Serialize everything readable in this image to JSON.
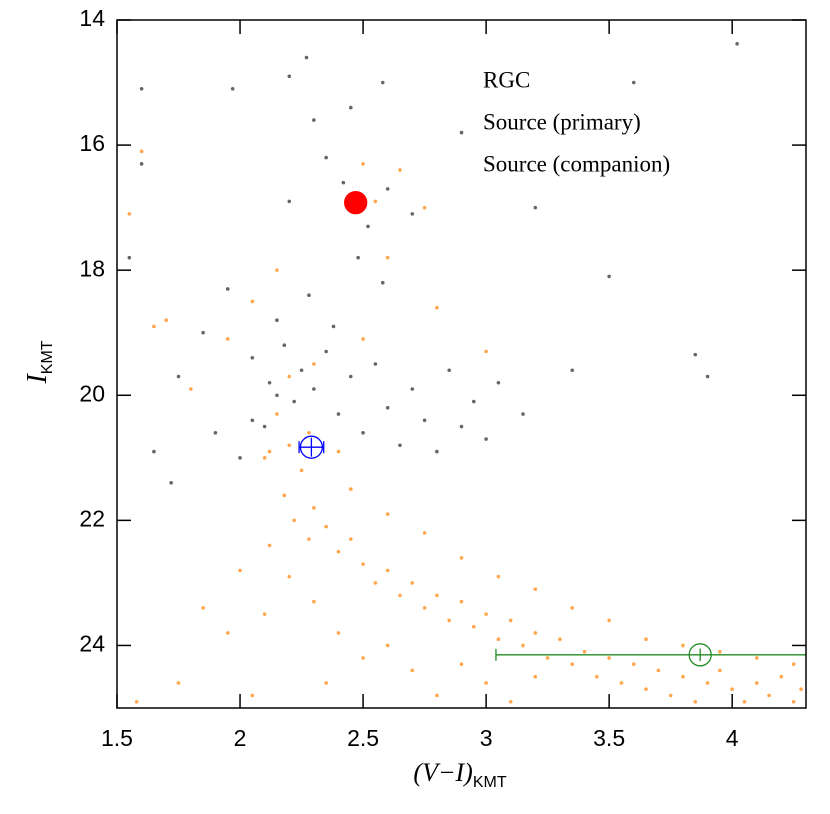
{
  "chart_data": {
    "type": "scatter",
    "xlabel": "(V−I)",
    "xlabel_sub": "KMT",
    "ylabel": "I",
    "ylabel_sub": "KMT",
    "xlim": [
      1.5,
      4.3
    ],
    "ylim": [
      25,
      14
    ],
    "xticks": [
      1.5,
      2,
      2.5,
      3,
      3.5,
      4
    ],
    "yticks": [
      14,
      16,
      18,
      20,
      22,
      24
    ],
    "background": [
      {
        "color": "#666666",
        "x": [
          2.05,
          2.12,
          2.18,
          2.22,
          2.25,
          2.3,
          2.35,
          2.4,
          2.45,
          2.5,
          2.55,
          2.6,
          2.65,
          2.7,
          2.75,
          2.8,
          2.85,
          2.9,
          2.95,
          3.05,
          3.15,
          2.15,
          2.28,
          2.38,
          2.48,
          2.52,
          2.58,
          2.42,
          2.35,
          2.6,
          2.7,
          2.2,
          1.95,
          1.85,
          1.75,
          1.65,
          1.6,
          1.55,
          1.9,
          2.0,
          2.1,
          2.3,
          2.45,
          2.58,
          2.9,
          3.2,
          3.6,
          4.02,
          3.9,
          3.85,
          3.5,
          3.35,
          3.0,
          1.6,
          1.97,
          2.2,
          2.27,
          1.72,
          2.05,
          2.15
        ],
        "y": [
          19.4,
          19.8,
          19.2,
          20.1,
          19.6,
          19.9,
          19.3,
          20.3,
          19.7,
          20.6,
          19.5,
          20.2,
          20.8,
          19.9,
          20.4,
          20.9,
          19.6,
          20.5,
          20.1,
          19.8,
          20.3,
          18.8,
          18.4,
          18.9,
          17.8,
          17.3,
          18.2,
          16.6,
          16.2,
          16.7,
          17.1,
          16.9,
          18.3,
          19.0,
          19.7,
          20.9,
          16.3,
          17.8,
          20.6,
          21.0,
          20.5,
          15.6,
          15.4,
          15.0,
          15.8,
          17.0,
          15.0,
          14.38,
          19.7,
          19.35,
          18.1,
          19.6,
          20.7,
          15.1,
          15.1,
          14.9,
          14.6,
          21.4,
          20.4,
          20.0
        ]
      },
      {
        "color": "#ffa64d",
        "x": [
          2.15,
          2.2,
          2.25,
          2.18,
          2.22,
          2.3,
          2.28,
          2.35,
          2.4,
          2.45,
          2.5,
          2.55,
          2.6,
          2.65,
          2.7,
          2.75,
          2.8,
          2.85,
          2.9,
          2.95,
          3.0,
          3.05,
          3.1,
          3.15,
          3.2,
          3.25,
          3.3,
          3.35,
          3.4,
          3.45,
          3.5,
          3.55,
          3.6,
          3.65,
          3.7,
          3.75,
          3.8,
          3.85,
          3.9,
          3.95,
          4.0,
          4.05,
          4.1,
          4.15,
          4.2,
          4.25,
          4.28,
          2.1,
          2.12,
          2.2,
          2.3,
          2.4,
          2.5,
          2.35,
          2.6,
          2.7,
          2.8,
          2.9,
          3.0,
          3.1,
          3.2,
          2.45,
          2.6,
          2.75,
          2.9,
          3.05,
          3.2,
          3.35,
          3.5,
          3.65,
          3.8,
          3.95,
          4.1,
          4.25,
          2.05,
          1.95,
          1.85,
          2.0,
          2.1,
          1.6,
          1.55,
          1.7,
          1.8,
          1.95,
          2.05,
          2.15,
          2.3,
          2.5,
          2.6,
          2.55,
          2.65,
          2.75,
          2.5,
          2.8,
          3.0,
          2.2,
          2.28,
          2.12,
          2.4,
          1.65,
          1.58,
          1.75
        ],
        "y": [
          20.3,
          20.8,
          21.2,
          21.6,
          22.0,
          21.8,
          22.3,
          22.1,
          22.5,
          22.3,
          22.7,
          23.0,
          22.8,
          23.2,
          23.0,
          23.4,
          23.2,
          23.6,
          23.3,
          23.7,
          23.5,
          23.9,
          23.6,
          24.0,
          23.8,
          24.2,
          23.9,
          24.3,
          24.1,
          24.5,
          24.2,
          24.6,
          24.3,
          24.7,
          24.4,
          24.8,
          24.5,
          24.9,
          24.6,
          24.4,
          24.7,
          24.9,
          24.6,
          24.8,
          24.5,
          24.9,
          24.7,
          21.0,
          22.4,
          22.9,
          23.3,
          23.8,
          24.2,
          24.6,
          24.0,
          24.4,
          24.8,
          24.3,
          24.6,
          24.9,
          24.5,
          21.5,
          21.9,
          22.2,
          22.6,
          22.9,
          23.1,
          23.4,
          23.6,
          23.9,
          24.0,
          24.1,
          24.2,
          24.3,
          24.8,
          23.8,
          23.4,
          22.8,
          23.5,
          16.1,
          17.1,
          18.8,
          19.9,
          19.1,
          18.5,
          18.0,
          19.5,
          19.1,
          17.8,
          16.9,
          16.4,
          17.0,
          16.3,
          18.6,
          19.3,
          19.7,
          20.6,
          20.9,
          20.9,
          18.9,
          24.9,
          24.6
        ]
      }
    ],
    "series": [
      {
        "name": "RGC",
        "color": "#ff0000",
        "filled": true,
        "x": [
          2.47
        ],
        "y": [
          16.92
        ]
      },
      {
        "name": "Source (primary)",
        "color": "#0000ff",
        "filled": false,
        "x": [
          2.29
        ],
        "y": [
          20.83
        ],
        "xerr": [
          0.05
        ],
        "yerr": [
          0.15
        ]
      },
      {
        "name": "Source (companion)",
        "color": "#228b22",
        "filled": false,
        "x": [
          3.87
        ],
        "y": [
          24.15
        ],
        "xerr": [
          0.83
        ],
        "yerr": [
          0.1
        ]
      }
    ]
  }
}
